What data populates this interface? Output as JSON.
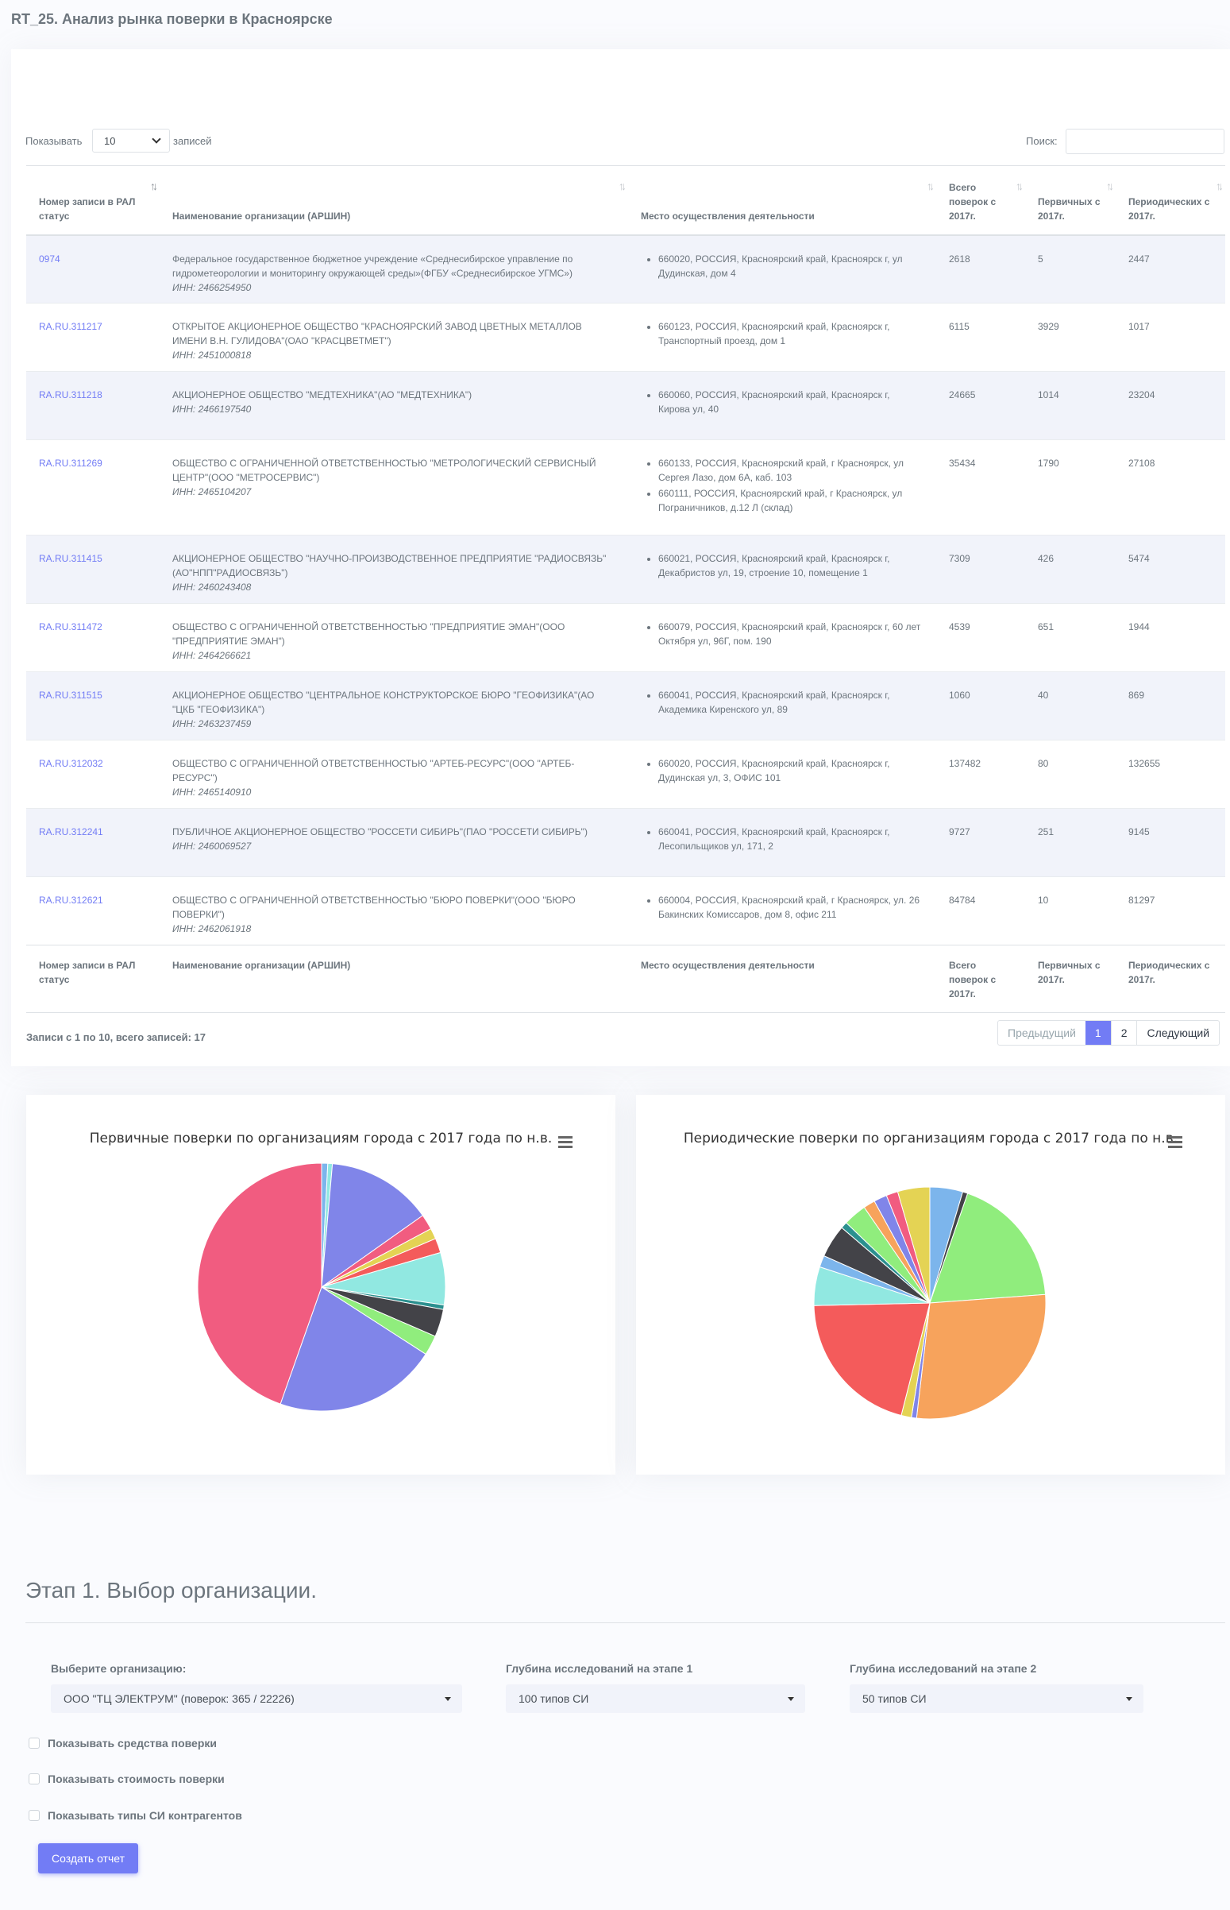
{
  "page_title": "RT_25. Анализ рынка поверки в Красноярске",
  "length_menu": {
    "prefix": "Показывать",
    "value": "10",
    "suffix": "записей"
  },
  "search": {
    "label": "Поиск:",
    "value": ""
  },
  "table": {
    "columns": [
      "Номер записи в РАЛ статус",
      "Наименование организации (АРШИН)",
      "Место осуществления деятельности",
      "Всего поверок с 2017г.",
      "Первичных с 2017г.",
      "Периодических с 2017г."
    ],
    "rows": [
      {
        "id": "0974",
        "name": "Федеральное государственное бюджетное учреждение «Среднесибирское управление по гидрометеорологии и мониторингу окружающей среды»(ФГБУ «Среднесибирское УГМС»)",
        "inn": "ИНН: 2466254950",
        "places": [
          "660020, РОССИЯ, Красноярский край, Красноярск г, ул Дудинская, дом 4"
        ],
        "total": "2618",
        "primary": "5",
        "periodic": "2447"
      },
      {
        "id": "RA.RU.311217",
        "name": "ОТКРЫТОЕ АКЦИОНЕРНОЕ ОБЩЕСТВО \"КРАСНОЯРСКИЙ ЗАВОД ЦВЕТНЫХ МЕТАЛЛОВ ИМЕНИ В.Н. ГУЛИДОВА\"(ОАО \"КРАСЦВЕТМЕТ\")",
        "inn": "ИНН: 2451000818",
        "places": [
          "660123, РОССИЯ, Красноярский край, Красноярск г, Транспортный проезд, дом 1"
        ],
        "total": "6115",
        "primary": "3929",
        "periodic": "1017"
      },
      {
        "id": "RA.RU.311218",
        "name": "АКЦИОНЕРНОЕ ОБЩЕСТВО \"МЕДТЕХНИКА\"(АО \"МЕДТЕХНИКА\")",
        "inn": "ИНН: 2466197540",
        "places": [
          "660060, РОССИЯ, Красноярский край, Красноярск г, Кирова ул, 40"
        ],
        "total": "24665",
        "primary": "1014",
        "periodic": "23204"
      },
      {
        "id": "RA.RU.311269",
        "name": "ОБЩЕСТВО С ОГРАНИЧЕННОЙ ОТВЕТСТВЕННОСТЬЮ \"МЕТРОЛОГИЧЕСКИЙ СЕРВИСНЫЙ ЦЕНТР\"(ООО \"МЕТРОСЕРВИС\")",
        "inn": "ИНН: 2465104207",
        "places": [
          "660133, РОССИЯ, Красноярский край, г Красноярск, ул Сергея Лазо, дом 6А, каб. 103",
          "660111, РОССИЯ, Красноярский край, г Красноярск, ул Пограничников, д.12 Л (склад)"
        ],
        "total": "35434",
        "primary": "1790",
        "periodic": "27108"
      },
      {
        "id": "RA.RU.311415",
        "name": "АКЦИОНЕРНОЕ ОБЩЕСТВО \"НАУЧНО-ПРОИЗВОДСТВЕННОЕ ПРЕДПРИЯТИЕ \"РАДИОСВЯЗЬ\"(АО\"НПП\"РАДИОСВЯЗЬ\")",
        "inn": "ИНН: 2460243408",
        "places": [
          "660021, РОССИЯ, Красноярский край, Красноярск г, Декабристов ул, 19, строение 10, помещение 1"
        ],
        "total": "7309",
        "primary": "426",
        "periodic": "5474"
      },
      {
        "id": "RA.RU.311472",
        "name": "ОБЩЕСТВО С ОГРАНИЧЕННОЙ ОТВЕТСТВЕННОСТЬЮ \"ПРЕДПРИЯТИЕ ЭМАН\"(ООО \"ПРЕДПРИЯТИЕ ЭМАН\")",
        "inn": "ИНН: 2464266621",
        "places": [
          "660079, РОССИЯ, Красноярский край, Красноярск г, 60 лет Октября ул, 96Г, пом. 190"
        ],
        "total": "4539",
        "primary": "651",
        "periodic": "1944"
      },
      {
        "id": "RA.RU.311515",
        "name": "АКЦИОНЕРНОЕ ОБЩЕСТВО \"ЦЕНТРАЛЬНОЕ КОНСТРУКТОРСКОЕ БЮРО \"ГЕОФИЗИКА\"(АО \"ЦКБ \"ГЕОФИЗИКА\")",
        "inn": "ИНН: 2463237459",
        "places": [
          "660041, РОССИЯ, Красноярский край, Красноярск г, Академика Киренского ул, 89"
        ],
        "total": "1060",
        "primary": "40",
        "periodic": "869"
      },
      {
        "id": "RA.RU.312032",
        "name": "ОБЩЕСТВО С ОГРАНИЧЕННОЙ ОТВЕТСТВЕННОСТЬЮ \"АРТЕБ-РЕСУРС\"(ООО \"АРТЕБ-РЕСУРС\")",
        "inn": "ИНН: 2465140910",
        "places": [
          "660020, РОССИЯ, Красноярский край, Красноярск г, Дудинская ул, 3, ОФИС 101"
        ],
        "total": "137482",
        "primary": "80",
        "periodic": "132655"
      },
      {
        "id": "RA.RU.312241",
        "name": "ПУБЛИЧНОЕ АКЦИОНЕРНОЕ ОБЩЕСТВО \"РОССЕТИ СИБИРЬ\"(ПАО \"РОССЕТИ СИБИРЬ\")",
        "inn": "ИНН: 2460069527",
        "places": [
          "660041, РОССИЯ, Красноярский край, Красноярск г, Лесопильщиков ул, 171, 2"
        ],
        "total": "9727",
        "primary": "251",
        "periodic": "9145"
      },
      {
        "id": "RA.RU.312621",
        "name": "ОБЩЕСТВО С ОГРАНИЧЕННОЙ ОТВЕТСТВЕННОСТЬЮ \"БЮРО ПОВЕРКИ\"(ООО \"БЮРО ПОВЕРКИ\")",
        "inn": "ИНН: 2462061918",
        "places": [
          "660004, РОССИЯ, Красноярский край, г Красноярск, ул. 26 Бакинских Комиссаров, дом 8, офис 211"
        ],
        "total": "84784",
        "primary": "10",
        "periodic": "81297"
      }
    ]
  },
  "info": "Записи с 1 по 10, всего записей: 17",
  "pagination": {
    "prev": "Предыдущий",
    "pages": [
      "1",
      "2"
    ],
    "next": "Следующий"
  },
  "chart_data": [
    {
      "type": "pie",
      "title": "Первичные поверки по организациям города с 2017 года по н.в.",
      "values": [
        0.8,
        0.6,
        13.8,
        2.0,
        1.4,
        1.9,
        6.8,
        0.6,
        3.6,
        2.6,
        21.3,
        44.6
      ],
      "colors": [
        "#7cb5ec",
        "#91e8e1",
        "#8085e9",
        "#f15c80",
        "#e4d354",
        "#f45b5b",
        "#91e8e1",
        "#2b908f",
        "#434348",
        "#90ed7d",
        "#8085e9",
        "#f15c80"
      ]
    },
    {
      "type": "pie",
      "title": "Периодические поверки по организациям города с 2017 года по н.в.",
      "values": [
        4.5,
        0.7,
        18.2,
        27.5,
        0.7,
        1.4,
        20.3,
        5.3,
        1.6,
        4.5,
        0.9,
        3.2,
        1.6,
        1.8,
        1.6,
        4.4
      ],
      "colors": [
        "#7cb5ec",
        "#434348",
        "#90ed7d",
        "#f7a35c",
        "#8085e9",
        "#e4d354",
        "#f45b5b",
        "#91e8e1",
        "#7cb5ec",
        "#434348",
        "#2b908f",
        "#90ed7d",
        "#f7a35c",
        "#8085e9",
        "#f15c80",
        "#e4d354"
      ]
    }
  ],
  "stage": {
    "title": "Этап 1. Выбор организации.",
    "org_label": "Выберите организацию:",
    "org_value": "ООО \"ТЦ ЭЛЕКТРУМ\" (поверок: 365 / 22226)",
    "depth1_label": "Глубина исследований на этапе 1",
    "depth1_value": "100 типов СИ",
    "depth2_label": "Глубина исследований на этапе 2",
    "depth2_value": "50 типов СИ",
    "checks": [
      "Показывать средства поверки",
      "Показывать стоимость поверки",
      "Показывать типы СИ контрагентов"
    ],
    "button": "Создать отчет"
  }
}
